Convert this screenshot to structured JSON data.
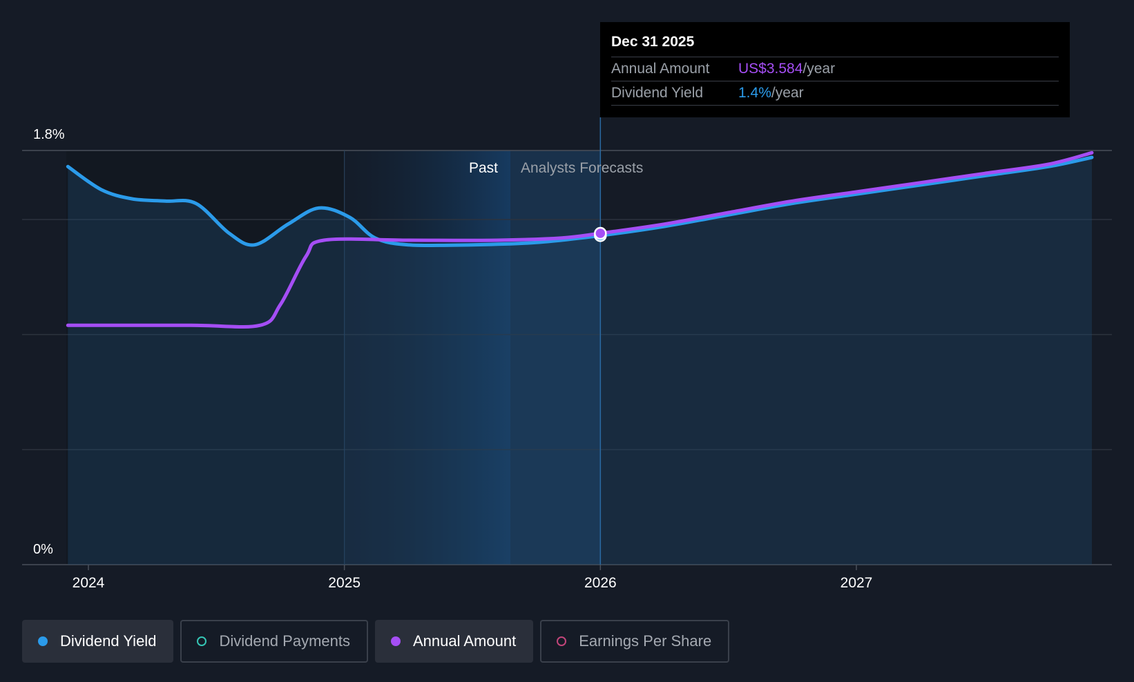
{
  "chart_data": {
    "type": "line",
    "y_axis": {
      "min": 0,
      "max": 1.8,
      "ticks_labeled": [
        "1.8%",
        "0%"
      ]
    },
    "x_axis": {
      "tick_labels": [
        "2024",
        "2025",
        "2026",
        "2027"
      ],
      "range": [
        "2023-12",
        "2027-12"
      ]
    },
    "regions": {
      "past_label": "Past",
      "forecast_label": "Analysts Forecasts",
      "divider_date": "2025-12-31"
    },
    "grid": true,
    "series": [
      {
        "name": "Dividend Yield",
        "color": "#2b9bea",
        "points": [
          [
            2023.92,
            1.73
          ],
          [
            2024.05,
            1.63
          ],
          [
            2024.17,
            1.59
          ],
          [
            2024.3,
            1.58
          ],
          [
            2024.42,
            1.57
          ],
          [
            2024.55,
            1.44
          ],
          [
            2024.65,
            1.39
          ],
          [
            2024.78,
            1.48
          ],
          [
            2024.9,
            1.55
          ],
          [
            2025.02,
            1.51
          ],
          [
            2025.12,
            1.42
          ],
          [
            2025.25,
            1.39
          ],
          [
            2025.5,
            1.39
          ],
          [
            2025.75,
            1.4
          ],
          [
            2026.0,
            1.43
          ],
          [
            2026.25,
            1.47
          ],
          [
            2026.5,
            1.52
          ],
          [
            2026.75,
            1.57
          ],
          [
            2027.0,
            1.61
          ],
          [
            2027.25,
            1.65
          ],
          [
            2027.5,
            1.69
          ],
          [
            2027.75,
            1.73
          ],
          [
            2027.92,
            1.77
          ]
        ]
      },
      {
        "name": "Annual Amount",
        "color": "#a54ef5",
        "points": [
          [
            2023.92,
            1.04
          ],
          [
            2024.4,
            1.04
          ],
          [
            2024.67,
            1.04
          ],
          [
            2024.75,
            1.13
          ],
          [
            2024.85,
            1.34
          ],
          [
            2024.92,
            1.41
          ],
          [
            2025.25,
            1.41
          ],
          [
            2025.6,
            1.41
          ],
          [
            2025.85,
            1.42
          ],
          [
            2026.0,
            1.44
          ],
          [
            2026.25,
            1.48
          ],
          [
            2026.5,
            1.53
          ],
          [
            2026.75,
            1.58
          ],
          [
            2027.0,
            1.62
          ],
          [
            2027.25,
            1.66
          ],
          [
            2027.5,
            1.7
          ],
          [
            2027.75,
            1.74
          ],
          [
            2027.92,
            1.79
          ]
        ]
      }
    ]
  },
  "tooltip": {
    "date": "Dec 31 2025",
    "rows": [
      {
        "key": "Annual Amount",
        "value": "US$3.584",
        "unit": "/year"
      },
      {
        "key": "Dividend Yield",
        "value": "1.4%",
        "unit": "/year"
      }
    ]
  },
  "legend": [
    {
      "label": "Dividend Yield",
      "color": "#2b9bea",
      "active": true,
      "filled": true
    },
    {
      "label": "Dividend Payments",
      "color": "#35c6b5",
      "active": false,
      "filled": false
    },
    {
      "label": "Annual Amount",
      "color": "#a54ef5",
      "active": true,
      "filled": true
    },
    {
      "label": "Earnings Per Share",
      "color": "#c2457a",
      "active": false,
      "filled": false
    }
  ]
}
